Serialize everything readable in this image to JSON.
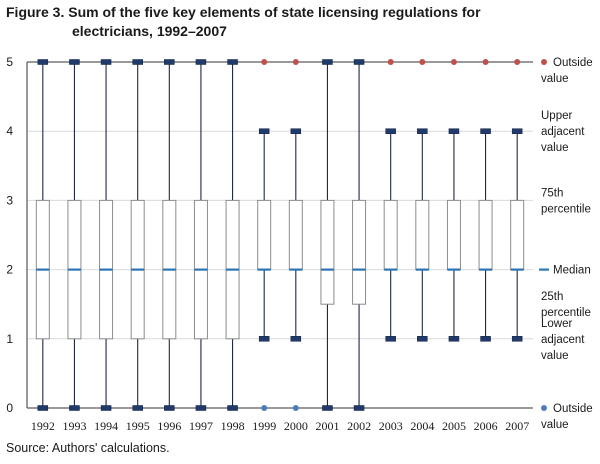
{
  "figure": {
    "title_line1": "Figure 3. Sum of the five key elements of state licensing regulations for",
    "title_line2": "electricians, 1992–2007",
    "source": "Source: Authors' calculations."
  },
  "chart_data": {
    "type": "boxplot",
    "title": "Figure 3. Sum of the five key elements of state licensing regulations for electricians, 1992–2007",
    "xlabel": "",
    "ylabel": "",
    "ylim": [
      0,
      5
    ],
    "yticks": [
      "0",
      "1",
      "2",
      "3",
      "4",
      "5"
    ],
    "grid": true,
    "legend_position": "right",
    "categories": [
      "1992",
      "1993",
      "1994",
      "1995",
      "1996",
      "1997",
      "1998",
      "1999",
      "2000",
      "2001",
      "2002",
      "2003",
      "2004",
      "2005",
      "2006",
      "2007"
    ],
    "boxes": [
      {
        "year": "1992",
        "low_adjacent": 0,
        "q1": 1,
        "median": 2,
        "q3": 3,
        "high_adjacent": 5,
        "outliers": []
      },
      {
        "year": "1993",
        "low_adjacent": 0,
        "q1": 1,
        "median": 2,
        "q3": 3,
        "high_adjacent": 5,
        "outliers": []
      },
      {
        "year": "1994",
        "low_adjacent": 0,
        "q1": 1,
        "median": 2,
        "q3": 3,
        "high_adjacent": 5,
        "outliers": []
      },
      {
        "year": "1995",
        "low_adjacent": 0,
        "q1": 1,
        "median": 2,
        "q3": 3,
        "high_adjacent": 5,
        "outliers": []
      },
      {
        "year": "1996",
        "low_adjacent": 0,
        "q1": 1,
        "median": 2,
        "q3": 3,
        "high_adjacent": 5,
        "outliers": []
      },
      {
        "year": "1997",
        "low_adjacent": 0,
        "q1": 1,
        "median": 2,
        "q3": 3,
        "high_adjacent": 5,
        "outliers": []
      },
      {
        "year": "1998",
        "low_adjacent": 0,
        "q1": 1,
        "median": 2,
        "q3": 3,
        "high_adjacent": 5,
        "outliers": []
      },
      {
        "year": "1999",
        "low_adjacent": 1,
        "q1": 2,
        "median": 2,
        "q3": 3,
        "high_adjacent": 4,
        "outliers": [
          5,
          0
        ]
      },
      {
        "year": "2000",
        "low_adjacent": 1,
        "q1": 2,
        "median": 2,
        "q3": 3,
        "high_adjacent": 4,
        "outliers": [
          5,
          0
        ]
      },
      {
        "year": "2001",
        "low_adjacent": 0,
        "q1": 1.5,
        "median": 2,
        "q3": 3,
        "high_adjacent": 5,
        "outliers": []
      },
      {
        "year": "2002",
        "low_adjacent": 0,
        "q1": 1.5,
        "median": 2,
        "q3": 3,
        "high_adjacent": 5,
        "outliers": []
      },
      {
        "year": "2003",
        "low_adjacent": 1,
        "q1": 2,
        "median": 2,
        "q3": 3,
        "high_adjacent": 4,
        "outliers": [
          5
        ]
      },
      {
        "year": "2004",
        "low_adjacent": 1,
        "q1": 2,
        "median": 2,
        "q3": 3,
        "high_adjacent": 4,
        "outliers": [
          5
        ]
      },
      {
        "year": "2005",
        "low_adjacent": 1,
        "q1": 2,
        "median": 2,
        "q3": 3,
        "high_adjacent": 4,
        "outliers": [
          5
        ]
      },
      {
        "year": "2006",
        "low_adjacent": 1,
        "q1": 2,
        "median": 2,
        "q3": 3,
        "high_adjacent": 4,
        "outliers": [
          5
        ]
      },
      {
        "year": "2007",
        "low_adjacent": 1,
        "q1": 2,
        "median": 2,
        "q3": 3,
        "high_adjacent": 4,
        "outliers": [
          5
        ]
      }
    ],
    "legend": [
      {
        "key": "outside_high",
        "lines": [
          "Outside",
          "value"
        ],
        "value": 5,
        "marker": "dot",
        "color": "#c0504d"
      },
      {
        "key": "upper_adjacent",
        "lines": [
          "Upper",
          "adjacent",
          "value"
        ],
        "value": 4,
        "marker": "none"
      },
      {
        "key": "q3",
        "lines": [
          "75th",
          "percentile"
        ],
        "value": 3,
        "marker": "none"
      },
      {
        "key": "median",
        "lines": [
          "Median"
        ],
        "value": 2,
        "marker": "dash",
        "color": "#2e75b6"
      },
      {
        "key": "q1",
        "lines": [
          "25th",
          "percentile"
        ],
        "value": 1.5,
        "marker": "none"
      },
      {
        "key": "lower_adjacent",
        "lines": [
          "Lower",
          "adjacent",
          "value"
        ],
        "value": 1,
        "marker": "none"
      },
      {
        "key": "outside_low",
        "lines": [
          "Outside",
          "value"
        ],
        "value": 0,
        "marker": "dot",
        "color": "#4a7ebb"
      }
    ],
    "colors": {
      "box_edge": "#8c8c8c",
      "whisker": "#1f2a44",
      "median": "#2e75b6",
      "cap": "#1f3a6b",
      "outlier_high": "#c0504d",
      "outlier_low": "#4a7ebb",
      "gridline": "#d9d9d9"
    }
  }
}
